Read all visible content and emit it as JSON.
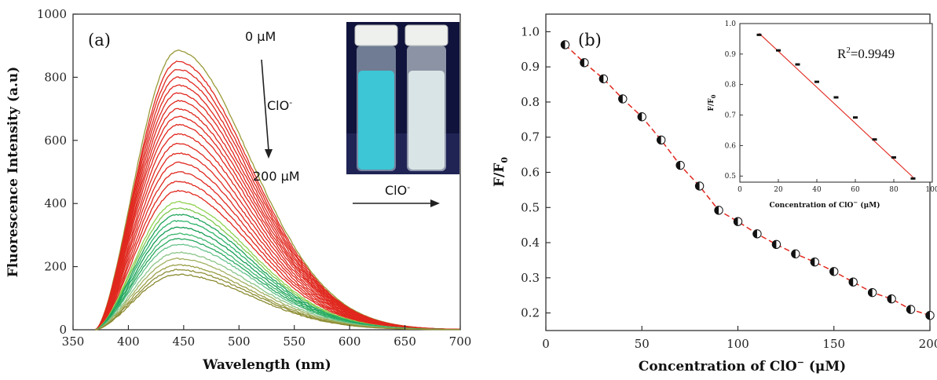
{
  "chart_data": [
    {
      "type": "line",
      "panel_label": "(a)",
      "xlabel": "Wavelength (nm)",
      "ylabel": "Fluorescence Intensity (a.u)",
      "xlim": [
        350,
        700
      ],
      "ylim": [
        0,
        1000
      ],
      "xticks": [
        350,
        400,
        450,
        500,
        550,
        600,
        650,
        700
      ],
      "yticks": [
        0,
        200,
        400,
        600,
        800,
        1000
      ],
      "peak_wavelength": 445,
      "spectrum_start": 370,
      "peak_intensities": [
        885,
        850,
        825,
        800,
        775,
        750,
        725,
        700,
        675,
        650,
        620,
        590,
        560,
        530,
        500,
        470,
        440,
        405,
        385,
        365,
        345,
        325,
        305,
        288,
        270,
        245,
        225,
        205,
        190,
        175
      ],
      "series_colors": [
        "#9a9a3a",
        "#e0281e",
        "#e0281e",
        "#e0281e",
        "#e0281e",
        "#e0281e",
        "#e0281e",
        "#e0281e",
        "#e0281e",
        "#e0281e",
        "#e0281e",
        "#e0281e",
        "#e0281e",
        "#e0281e",
        "#e0281e",
        "#e0281e",
        "#e0281e",
        "#8fd14f",
        "#7ec850",
        "#1ea35a",
        "#2db36a",
        "#169c55",
        "#3fb86f",
        "#28a860",
        "#66c28a",
        "#8ac486",
        "#a0b060",
        "#9a9f45",
        "#8f8f3a",
        "#8a8a30"
      ],
      "annotations": {
        "start_conc": "0 μM",
        "end_conc": "200 μM",
        "analyte": "ClO",
        "analyte_sup": "-"
      },
      "inset_photo": {
        "arrow_label": "ClO",
        "arrow_label_sup": "-",
        "vial_left_color": "#3cc6d6",
        "vial_right_color": "#d9e4e6"
      }
    },
    {
      "type": "scatter",
      "panel_label": "(b)",
      "xlabel": "Concentration of ClO",
      "xlabel_sup": "−",
      "xlabel_unit": "(μM)",
      "ylabel": "F/F",
      "ylabel_sub": "0",
      "xlim": [
        0,
        200
      ],
      "ylim": [
        0.15,
        1.05
      ],
      "xticks": [
        0,
        50,
        100,
        150,
        200
      ],
      "yticks": [
        0.2,
        0.3,
        0.4,
        0.5,
        0.6,
        0.7,
        0.8,
        0.9,
        1.0
      ],
      "x": [
        10,
        20,
        30,
        40,
        50,
        60,
        70,
        80,
        90,
        100,
        110,
        120,
        130,
        140,
        150,
        160,
        170,
        180,
        190,
        200
      ],
      "y": [
        0.963,
        0.912,
        0.866,
        0.809,
        0.758,
        0.692,
        0.62,
        0.561,
        0.492,
        0.46,
        0.425,
        0.395,
        0.368,
        0.345,
        0.318,
        0.288,
        0.258,
        0.24,
        0.21,
        0.193
      ],
      "line_color": "#e0281e",
      "inset": {
        "type": "scatter",
        "xlabel": "Concentration of ClO",
        "xlabel_sup": "−",
        "xlabel_unit": "(μM)",
        "ylabel": "F/F",
        "ylabel_sub": "0",
        "xlim": [
          0,
          100
        ],
        "ylim": [
          0.48,
          1.0
        ],
        "xticks": [
          0,
          20,
          40,
          60,
          80,
          100
        ],
        "yticks": [
          0.5,
          0.6,
          0.7,
          0.8,
          0.9,
          1.0
        ],
        "x": [
          10,
          20,
          30,
          40,
          50,
          60,
          70,
          80,
          90
        ],
        "y": [
          0.963,
          0.912,
          0.866,
          0.809,
          0.758,
          0.692,
          0.62,
          0.561,
          0.492
        ],
        "fit": {
          "x": [
            10,
            90
          ],
          "y": [
            0.968,
            0.496
          ]
        },
        "r2_label": "R",
        "r2_sup": "2",
        "r2_value": "=0.9949"
      }
    }
  ]
}
